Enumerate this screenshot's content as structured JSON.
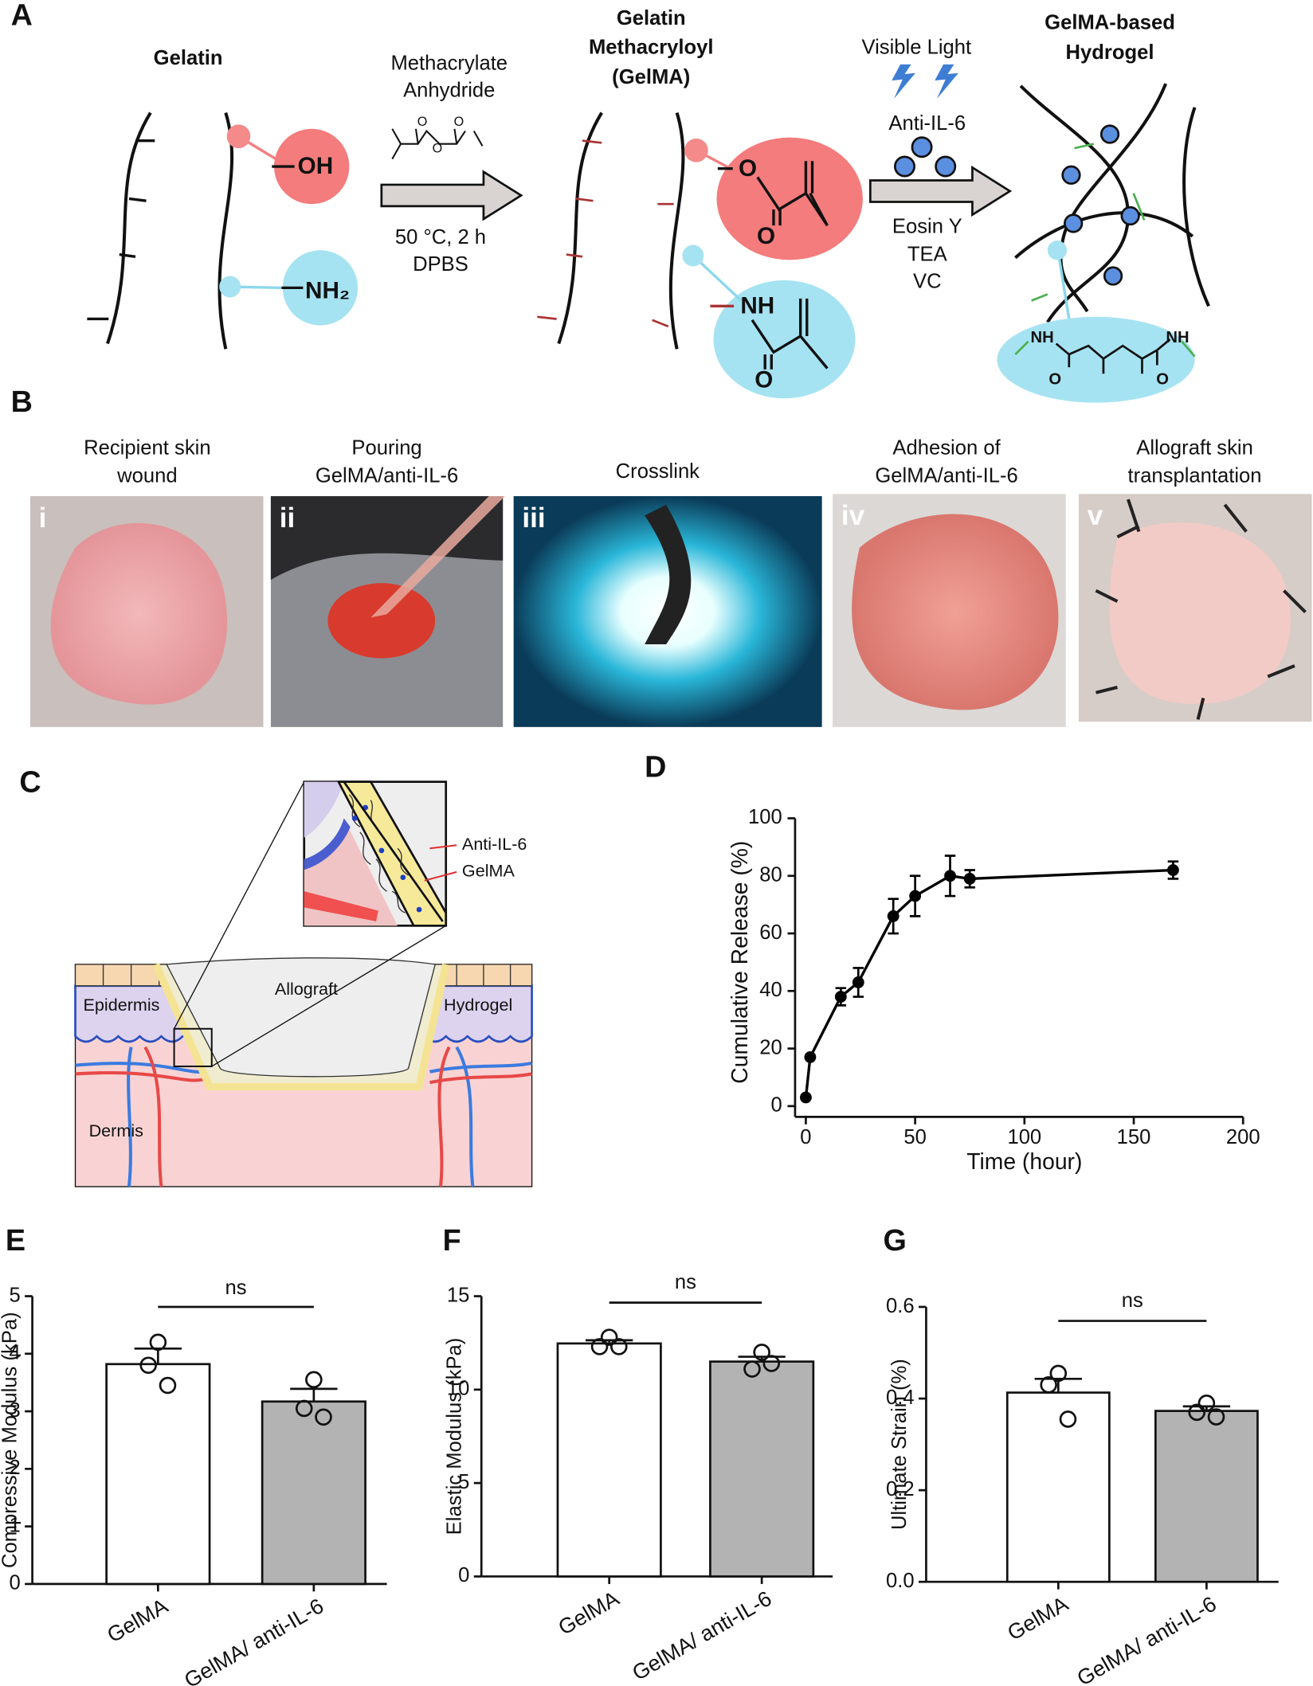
{
  "panel_labels": [
    "A",
    "B",
    "C"
  ],
  "panel_a": {
    "gelatin": "Gelatin",
    "oh": "OH",
    "nh2": "NH₂",
    "reagent": [
      "Methacrylate",
      "Anhydride"
    ],
    "anhydride_atoms": [
      "O",
      "O",
      "O"
    ],
    "conditions": [
      "50 °C, 2 h",
      "DPBS"
    ],
    "gelma_title": [
      "Gelatin",
      "Methacryloyl",
      "(GelMA)"
    ],
    "gelma_atoms": [
      "O",
      "O",
      "NH",
      "O"
    ],
    "light": "Visible Light",
    "drug": "Anti-IL-6",
    "initiators": [
      "Eosin Y",
      "TEA",
      "VC"
    ],
    "hydrogel_title": [
      "GelMA-based",
      "Hydrogel"
    ],
    "crosslink_atoms": [
      "NH",
      "NH",
      "O",
      "O"
    ]
  },
  "panel_b": [
    {
      "numeral": "i",
      "caption": [
        "Recipient skin",
        "wound"
      ]
    },
    {
      "numeral": "ii",
      "caption": [
        "Pouring",
        "GelMA/anti-IL-6"
      ]
    },
    {
      "numeral": "iii",
      "caption": [
        "Crosslink"
      ]
    },
    {
      "numeral": "iv",
      "caption": [
        "Adhesion of",
        "GelMA/anti-IL-6"
      ]
    },
    {
      "numeral": "v",
      "caption": [
        "Allograft skin",
        "transplantation"
      ]
    }
  ],
  "panel_c": {
    "anti_il6": "Anti-IL-6",
    "gelma": "GelMA",
    "allograft": "Allograft",
    "hydrogel": "Hydrogel",
    "epidermis": "Epidermis",
    "dermis": "Dermis"
  },
  "chart_data": [
    {
      "label": "D",
      "type": "line",
      "x": [
        0,
        2,
        16,
        24,
        40,
        50,
        66,
        75,
        168
      ],
      "values": [
        3,
        17,
        38,
        43,
        66,
        73,
        80,
        79,
        82
      ],
      "errors": [
        0,
        0,
        3,
        5,
        6,
        7,
        7,
        3,
        3
      ],
      "color": "#000000",
      "xlim": [
        0,
        200
      ],
      "xticks": [
        0,
        50,
        100,
        150,
        200
      ],
      "ylim": [
        0,
        100
      ],
      "yticks": [
        0,
        20,
        40,
        60,
        80,
        100
      ],
      "xlabel": "Time (hour)",
      "ylabel": "Cumulative Release (%)"
    },
    {
      "label": "E",
      "type": "bar",
      "categories": [
        "GelMA",
        "GelMA/ anti-IL-6"
      ],
      "values": [
        3.82,
        3.17
      ],
      "errors": [
        0.27,
        0.22
      ],
      "points": [
        [
          4.2,
          3.8,
          3.45
        ],
        [
          3.55,
          3.05,
          2.9
        ]
      ],
      "colors": [
        "#ffffff",
        "#b3b3b3"
      ],
      "ylim": [
        0,
        5
      ],
      "yticks": [
        0,
        1,
        2,
        3,
        4,
        5
      ],
      "ylabel": "Compressive Modulus (kPa)",
      "annotation": "ns"
    },
    {
      "label": "F",
      "type": "bar",
      "categories": [
        "GelMA",
        "GelMA/ anti-IL-6"
      ],
      "values": [
        12.47,
        11.5
      ],
      "errors": [
        0.17,
        0.26
      ],
      "points": [
        [
          12.8,
          12.3,
          12.3
        ],
        [
          12.0,
          11.1,
          11.4
        ]
      ],
      "colors": [
        "#ffffff",
        "#b3b3b3"
      ],
      "ylim": [
        0,
        15
      ],
      "yticks": [
        0,
        5,
        10,
        15
      ],
      "ylabel": "Elastic Modulus (kPa)",
      "annotation": "ns"
    },
    {
      "label": "G",
      "type": "bar",
      "categories": [
        "GelMA",
        "GelMA/ anti-IL-6"
      ],
      "values": [
        0.413,
        0.373
      ],
      "errors": [
        0.03,
        0.01
      ],
      "points": [
        [
          0.455,
          0.43,
          0.355
        ],
        [
          0.39,
          0.37,
          0.36
        ]
      ],
      "colors": [
        "#ffffff",
        "#b3b3b3"
      ],
      "ylim": [
        0,
        0.6
      ],
      "yticks": [
        {
          "value": 0,
          "label": "0.0"
        },
        0.2,
        0.4,
        0.6
      ],
      "ylabel": "Ultimate Strain (%)",
      "annotation": "ns"
    }
  ]
}
